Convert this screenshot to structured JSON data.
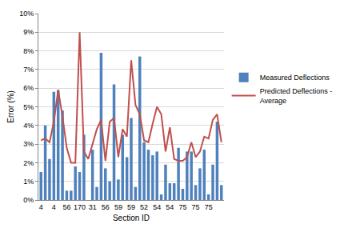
{
  "chart_data": {
    "type": "bar",
    "x_label": "Section ID",
    "y_label": "Error (%)",
    "categories": [
      "4",
      null,
      null,
      "4",
      null,
      null,
      "56",
      null,
      null,
      "170",
      null,
      null,
      "31",
      null,
      null,
      "56",
      null,
      null,
      "59",
      null,
      null,
      "59",
      null,
      null,
      "52",
      null,
      null,
      "54",
      null,
      null,
      "54",
      null,
      null,
      "75",
      null,
      null,
      "75",
      null,
      null,
      "75",
      null,
      null,
      null
    ],
    "series": [
      {
        "name": "Measured Deflections",
        "type": "bar",
        "color": "#4f81bd",
        "values": [
          1.5,
          4.0,
          2.2,
          5.8,
          5.9,
          4.8,
          0.5,
          0.5,
          1.8,
          1.5,
          3.5,
          0,
          2.7,
          0.7,
          7.9,
          1.7,
          1.0,
          6.2,
          1.1,
          3.5,
          2.3,
          4.4,
          0.7,
          7.7,
          3.1,
          2.7,
          2.4,
          2.6,
          0.3,
          1.9,
          0.9,
          0.9,
          2.8,
          0.6,
          2.6,
          2.6,
          0.8,
          1.7,
          2.7,
          0.3,
          1.9,
          4.2,
          0.8
        ]
      },
      {
        "name": "Predicted Deflections - Average",
        "type": "line",
        "color": "#c0504d",
        "values": [
          3.2,
          3.3,
          3.1,
          4.2,
          5.9,
          4.5,
          2.8,
          2.0,
          2.0,
          9.0,
          2.6,
          2.2,
          3.0,
          3.8,
          4.3,
          2.1,
          4.2,
          4.4,
          2.3,
          3.8,
          3.4,
          7.5,
          5.1,
          4.6,
          3.2,
          3.1,
          4.1,
          5.0,
          4.6,
          2.6,
          3.9,
          2.2,
          2.1,
          2.1,
          2.3,
          3.1,
          2.3,
          2.6,
          3.4,
          3.3,
          4.3,
          4.6,
          3.1
        ]
      }
    ],
    "ylim": [
      0,
      10
    ],
    "yticks": [
      {
        "value": 0,
        "label": "0%"
      },
      {
        "value": 1,
        "label": "1%"
      },
      {
        "value": 2,
        "label": "2%"
      },
      {
        "value": 3,
        "label": "3%"
      },
      {
        "value": 4,
        "label": "4%"
      },
      {
        "value": 5,
        "label": "5%"
      },
      {
        "value": 6,
        "label": "6%"
      },
      {
        "value": 7,
        "label": "7%"
      },
      {
        "value": 8,
        "label": "8%"
      },
      {
        "value": 9,
        "label": "9%"
      },
      {
        "value": 10,
        "label": "10%"
      }
    ],
    "grid": true,
    "legend": "right"
  }
}
